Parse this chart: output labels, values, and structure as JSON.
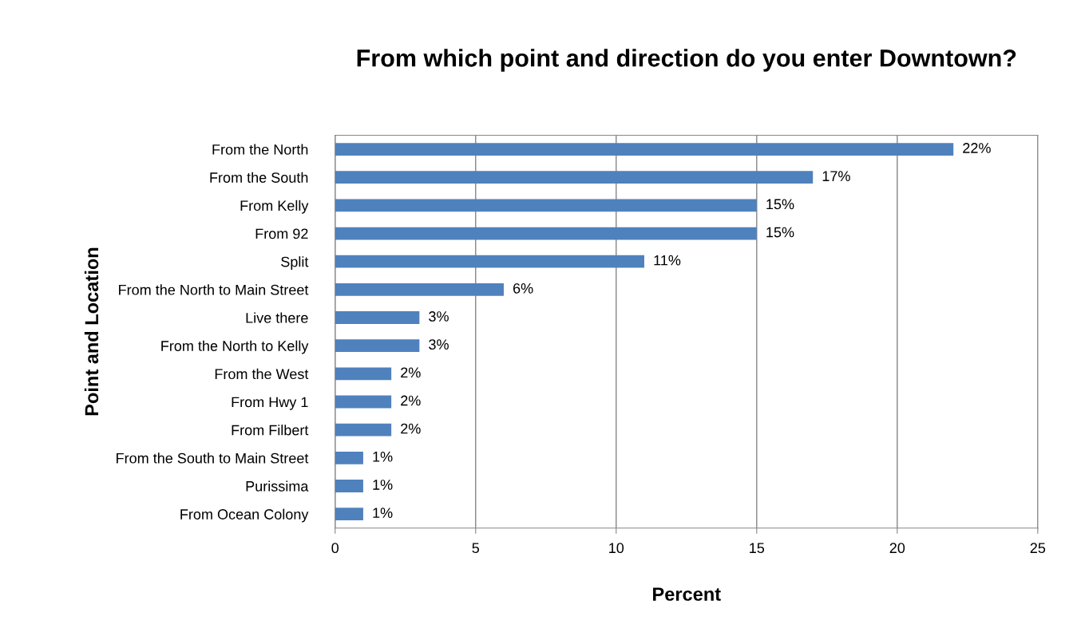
{
  "chart_data": {
    "type": "bar",
    "orientation": "horizontal",
    "title": "From which point and direction do you enter Downtown?",
    "xlabel": "Percent",
    "ylabel": "Point and Location",
    "categories": [
      "From the North",
      "From the South",
      "From Kelly",
      "From 92",
      "Split",
      "From the North to Main Street",
      "Live there",
      "From the North to Kelly",
      "From the West",
      "From Hwy 1",
      "From Filbert",
      "From the South to Main Street",
      "Purissima",
      "From Ocean Colony"
    ],
    "values": [
      22,
      17,
      15,
      15,
      11,
      6,
      3,
      3,
      2,
      2,
      2,
      1,
      1,
      1
    ],
    "value_labels": [
      "22%",
      "17%",
      "15%",
      "15%",
      "11%",
      "6%",
      "3%",
      "3%",
      "2%",
      "2%",
      "2%",
      "1%",
      "1%",
      "1%"
    ],
    "color": "#4f81bd",
    "xlim": [
      0,
      25
    ],
    "xticks": [
      0,
      5,
      10,
      15,
      20,
      25
    ],
    "grid": "x",
    "legend": false
  }
}
